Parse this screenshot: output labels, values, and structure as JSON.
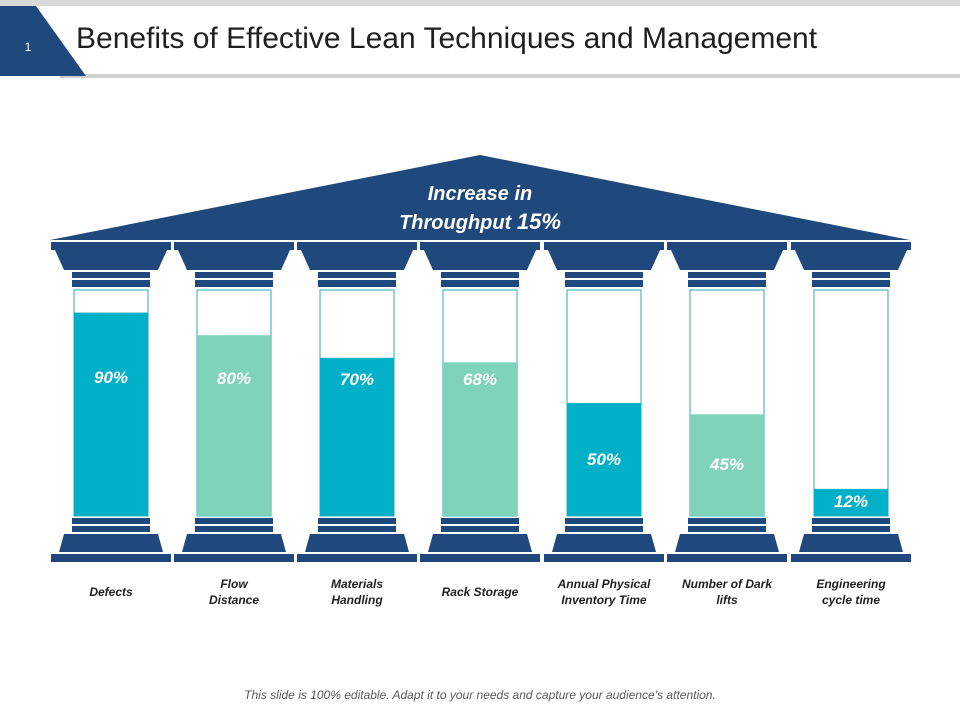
{
  "slide": {
    "number": "1",
    "title": "Benefits of Effective Lean Techniques and Management"
  },
  "roof": {
    "line1": "Increase in",
    "line2": "Throughput",
    "value": "15%"
  },
  "colors": {
    "navy": "#1f497d",
    "teal": "#00b0c8",
    "mint": "#7fd3b8",
    "pillarBorder": "#2fa7b4"
  },
  "chart_data": {
    "type": "bar",
    "title": "Benefits of Effective Lean Techniques and Management",
    "categories": [
      "Defects",
      "Flow Distance",
      "Materials Handling",
      "Rack Storage",
      "Annual Physical Inventory Time",
      "Number of Dark lifts",
      "Engineering cycle time"
    ],
    "values": [
      90,
      80,
      70,
      68,
      50,
      45,
      12
    ],
    "unit": "%",
    "ylim": [
      0,
      100
    ]
  },
  "pillars": [
    {
      "label": "90%",
      "value": 90,
      "color": "teal",
      "caption": [
        "Defects"
      ]
    },
    {
      "label": "80%",
      "value": 80,
      "color": "mint",
      "caption": [
        "Flow",
        "Distance"
      ]
    },
    {
      "label": "70%",
      "value": 70,
      "color": "teal",
      "caption": [
        "Materials",
        "Handling"
      ]
    },
    {
      "label": "68%",
      "value": 68,
      "color": "mint",
      "caption": [
        "Rack Storage"
      ]
    },
    {
      "label": "50%",
      "value": 50,
      "color": "teal",
      "caption": [
        "Annual Physical",
        "Inventory Time"
      ]
    },
    {
      "label": "45%",
      "value": 45,
      "color": "mint",
      "caption": [
        "Number  of Dark",
        "lifts"
      ]
    },
    {
      "label": "12%",
      "value": 12,
      "color": "teal",
      "caption": [
        "Engineering",
        "cycle time"
      ]
    }
  ],
  "footer": "This slide is 100% editable. Adapt it to your needs and capture your audience’s attention."
}
